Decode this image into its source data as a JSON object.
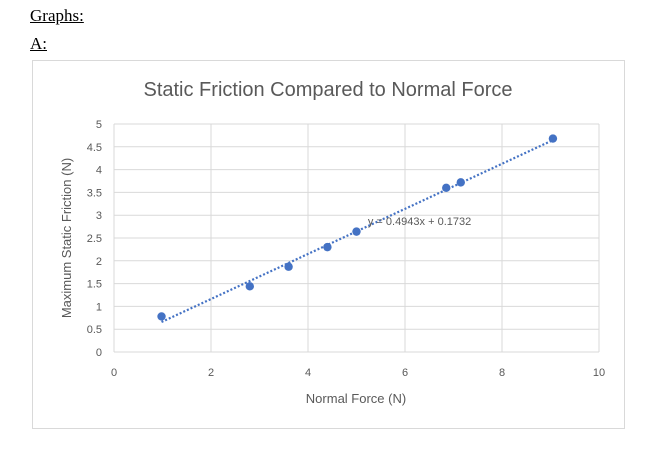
{
  "page": {
    "heading": "Graphs:",
    "subheading": "A:"
  },
  "chart_data": {
    "type": "scatter",
    "title": "Static Friction Compared to Normal Force",
    "xlabel": "Normal Force (N)",
    "ylabel": "Maximum Static Friction (N)",
    "xlim": [
      0,
      10
    ],
    "ylim": [
      0,
      5
    ],
    "x_ticks": [
      "0",
      "2",
      "4",
      "6",
      "8",
      "10"
    ],
    "y_ticks": [
      "0",
      "0.5",
      "1",
      "1.5",
      "2",
      "2.5",
      "3",
      "3.5",
      "4",
      "4.5",
      "5"
    ],
    "grid": true,
    "legend": "none",
    "marker_color": "#4472C4",
    "trendline_color": "#4472C4",
    "points": [
      {
        "x": 0.98,
        "y": 0.78
      },
      {
        "x": 2.8,
        "y": 1.44
      },
      {
        "x": 3.6,
        "y": 1.87
      },
      {
        "x": 4.4,
        "y": 2.3
      },
      {
        "x": 5.0,
        "y": 2.64
      },
      {
        "x": 6.85,
        "y": 3.6
      },
      {
        "x": 7.15,
        "y": 3.72
      },
      {
        "x": 9.05,
        "y": 4.68
      }
    ],
    "trendline": {
      "slope": 0.4943,
      "intercept": 0.1732,
      "x_range": [
        0.98,
        9.05
      ],
      "equation": "y = 0.4943x + 0.1732"
    }
  }
}
